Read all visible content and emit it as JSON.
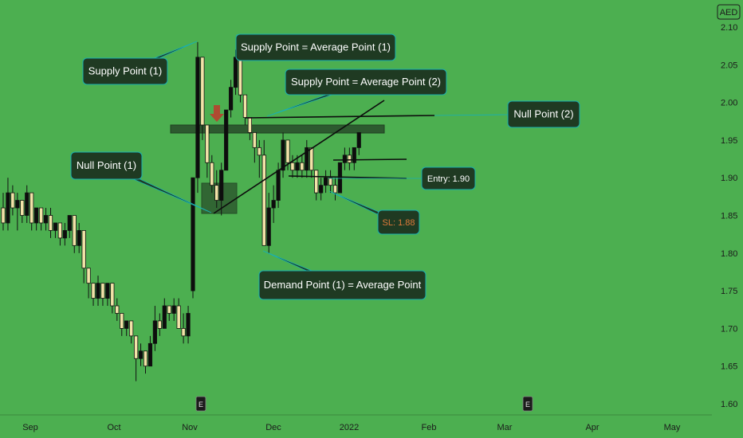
{
  "currency": "AED",
  "chart_data": {
    "type": "candlestick",
    "ylim": [
      1.58,
      2.12
    ],
    "y_ticks": [
      "2.10",
      "2.05",
      "2.00",
      "1.95",
      "1.90",
      "1.85",
      "1.80",
      "1.75",
      "1.70",
      "1.65",
      "1.60"
    ],
    "x_labels": [
      "Sep",
      "Oct",
      "Nov",
      "Dec",
      "2022",
      "Feb",
      "Mar",
      "Apr",
      "May"
    ],
    "events_marker": "E",
    "candles": [
      [
        1.86,
        1.88,
        1.83,
        1.84
      ],
      [
        1.84,
        1.9,
        1.83,
        1.88
      ],
      [
        1.88,
        1.89,
        1.85,
        1.86
      ],
      [
        1.86,
        1.88,
        1.83,
        1.87
      ],
      [
        1.87,
        1.87,
        1.84,
        1.85
      ],
      [
        1.85,
        1.89,
        1.84,
        1.88
      ],
      [
        1.88,
        1.88,
        1.83,
        1.84
      ],
      [
        1.84,
        1.86,
        1.83,
        1.86
      ],
      [
        1.86,
        1.86,
        1.83,
        1.84
      ],
      [
        1.84,
        1.86,
        1.83,
        1.85
      ],
      [
        1.85,
        1.86,
        1.82,
        1.83
      ],
      [
        1.83,
        1.84,
        1.82,
        1.84
      ],
      [
        1.84,
        1.84,
        1.81,
        1.82
      ],
      [
        1.82,
        1.84,
        1.81,
        1.83
      ],
      [
        1.83,
        1.85,
        1.82,
        1.85
      ],
      [
        1.85,
        1.85,
        1.8,
        1.81
      ],
      [
        1.81,
        1.84,
        1.8,
        1.83
      ],
      [
        1.83,
        1.83,
        1.76,
        1.78
      ],
      [
        1.78,
        1.78,
        1.74,
        1.76
      ],
      [
        1.76,
        1.76,
        1.73,
        1.74
      ],
      [
        1.74,
        1.77,
        1.73,
        1.76
      ],
      [
        1.76,
        1.76,
        1.73,
        1.74
      ],
      [
        1.74,
        1.76,
        1.73,
        1.76
      ],
      [
        1.76,
        1.76,
        1.72,
        1.73
      ],
      [
        1.73,
        1.74,
        1.71,
        1.72
      ],
      [
        1.72,
        1.72,
        1.69,
        1.7
      ],
      [
        1.7,
        1.71,
        1.69,
        1.71
      ],
      [
        1.71,
        1.71,
        1.68,
        1.69
      ],
      [
        1.69,
        1.69,
        1.63,
        1.66
      ],
      [
        1.66,
        1.68,
        1.65,
        1.67
      ],
      [
        1.67,
        1.67,
        1.64,
        1.65
      ],
      [
        1.65,
        1.69,
        1.65,
        1.68
      ],
      [
        1.68,
        1.73,
        1.67,
        1.71
      ],
      [
        1.71,
        1.72,
        1.69,
        1.7
      ],
      [
        1.7,
        1.74,
        1.7,
        1.73
      ],
      [
        1.73,
        1.73,
        1.71,
        1.72
      ],
      [
        1.72,
        1.74,
        1.71,
        1.73
      ],
      [
        1.73,
        1.74,
        1.7,
        1.7
      ],
      [
        1.7,
        1.72,
        1.68,
        1.69
      ],
      [
        1.69,
        1.73,
        1.68,
        1.72
      ],
      [
        1.75,
        1.9,
        1.74,
        1.9
      ],
      [
        1.9,
        2.08,
        1.88,
        2.06
      ],
      [
        2.06,
        2.06,
        1.95,
        1.97
      ],
      [
        1.97,
        1.97,
        1.9,
        1.92
      ],
      [
        1.92,
        1.93,
        1.88,
        1.89
      ],
      [
        1.89,
        1.91,
        1.86,
        1.87
      ],
      [
        1.87,
        1.92,
        1.85,
        1.91
      ],
      [
        1.91,
        1.99,
        1.91,
        1.99
      ],
      [
        1.99,
        2.03,
        1.98,
        2.02
      ],
      [
        2.02,
        2.07,
        2.01,
        2.06
      ],
      [
        2.06,
        2.06,
        2.0,
        2.01
      ],
      [
        2.01,
        2.01,
        1.97,
        1.98
      ],
      [
        1.98,
        1.98,
        1.95,
        1.96
      ],
      [
        1.96,
        1.96,
        1.92,
        1.94
      ],
      [
        1.94,
        1.95,
        1.9,
        1.93
      ],
      [
        1.93,
        1.95,
        1.81,
        1.81
      ],
      [
        1.81,
        1.88,
        1.8,
        1.86
      ],
      [
        1.86,
        1.89,
        1.84,
        1.87
      ],
      [
        1.87,
        1.92,
        1.86,
        1.91
      ],
      [
        1.91,
        1.96,
        1.9,
        1.95
      ],
      [
        1.95,
        1.95,
        1.91,
        1.92
      ],
      [
        1.92,
        1.93,
        1.9,
        1.91
      ],
      [
        1.91,
        1.93,
        1.9,
        1.92
      ],
      [
        1.92,
        1.93,
        1.9,
        1.91
      ],
      [
        1.91,
        1.95,
        1.9,
        1.94
      ],
      [
        1.94,
        1.94,
        1.9,
        1.91
      ],
      [
        1.91,
        1.91,
        1.87,
        1.88
      ],
      [
        1.88,
        1.9,
        1.87,
        1.89
      ],
      [
        1.89,
        1.91,
        1.88,
        1.9
      ],
      [
        1.9,
        1.91,
        1.88,
        1.89
      ],
      [
        1.89,
        1.9,
        1.87,
        1.88
      ],
      [
        1.88,
        1.92,
        1.88,
        1.92
      ],
      [
        1.92,
        1.94,
        1.91,
        1.93
      ],
      [
        1.93,
        1.94,
        1.91,
        1.92
      ],
      [
        1.92,
        1.94,
        1.91,
        1.94
      ],
      [
        1.94,
        1.96,
        1.93,
        1.96
      ]
    ]
  },
  "annotations": {
    "supply_point_1": "Supply Point (1)",
    "supply_avg_1": "Supply Point = Average Point (1)",
    "supply_avg_2": "Supply Point = Average Point (2)",
    "null_point_2": "Null Point (2)",
    "null_point_1": "Null Point (1)",
    "entry": "Entry: 1.90",
    "sl": "SL: 1.88",
    "demand_point": "Demand Point (1) = Average Point"
  }
}
